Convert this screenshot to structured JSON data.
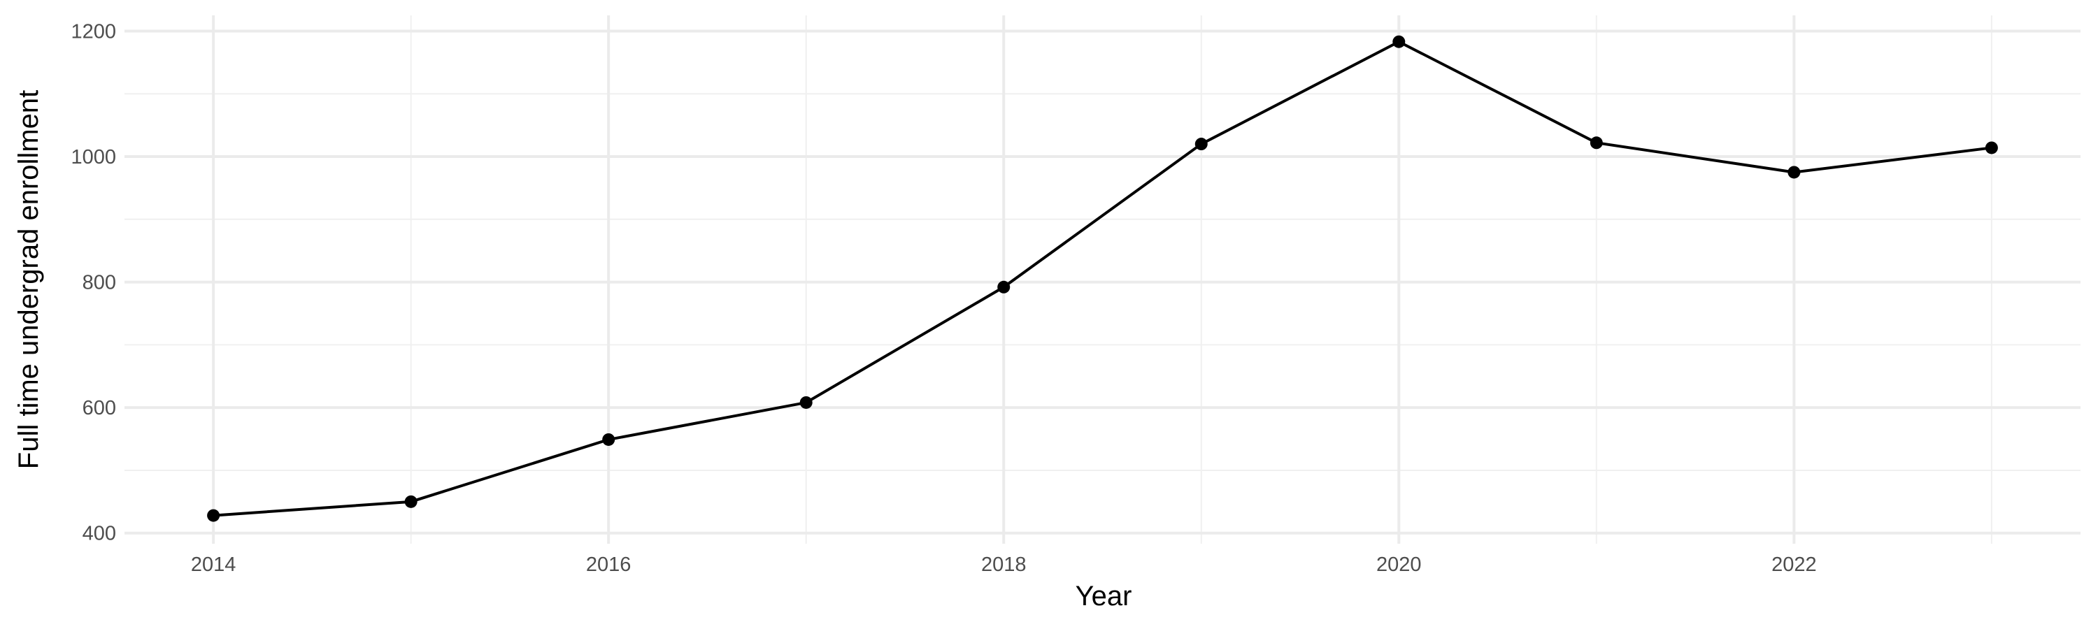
{
  "chart_data": {
    "type": "line",
    "title": "",
    "xlabel": "Year",
    "ylabel": "Full time undergrad enrollment",
    "x": [
      2014,
      2015,
      2016,
      2017,
      2018,
      2019,
      2020,
      2021,
      2022,
      2023
    ],
    "series": [
      {
        "values": [
          428,
          450,
          549,
          608,
          792,
          1020,
          1183,
          1022,
          975,
          1014
        ],
        "color": "#000000"
      }
    ],
    "xlim": [
      2013.55,
      2023.45
    ],
    "ylim": [
      383,
      1225
    ],
    "x_ticks": [
      "2014",
      "2016",
      "2018",
      "2020",
      "2022"
    ],
    "y_ticks": [
      "400",
      "600",
      "800",
      "1000",
      "1200"
    ],
    "grid": true,
    "markers": "points"
  }
}
